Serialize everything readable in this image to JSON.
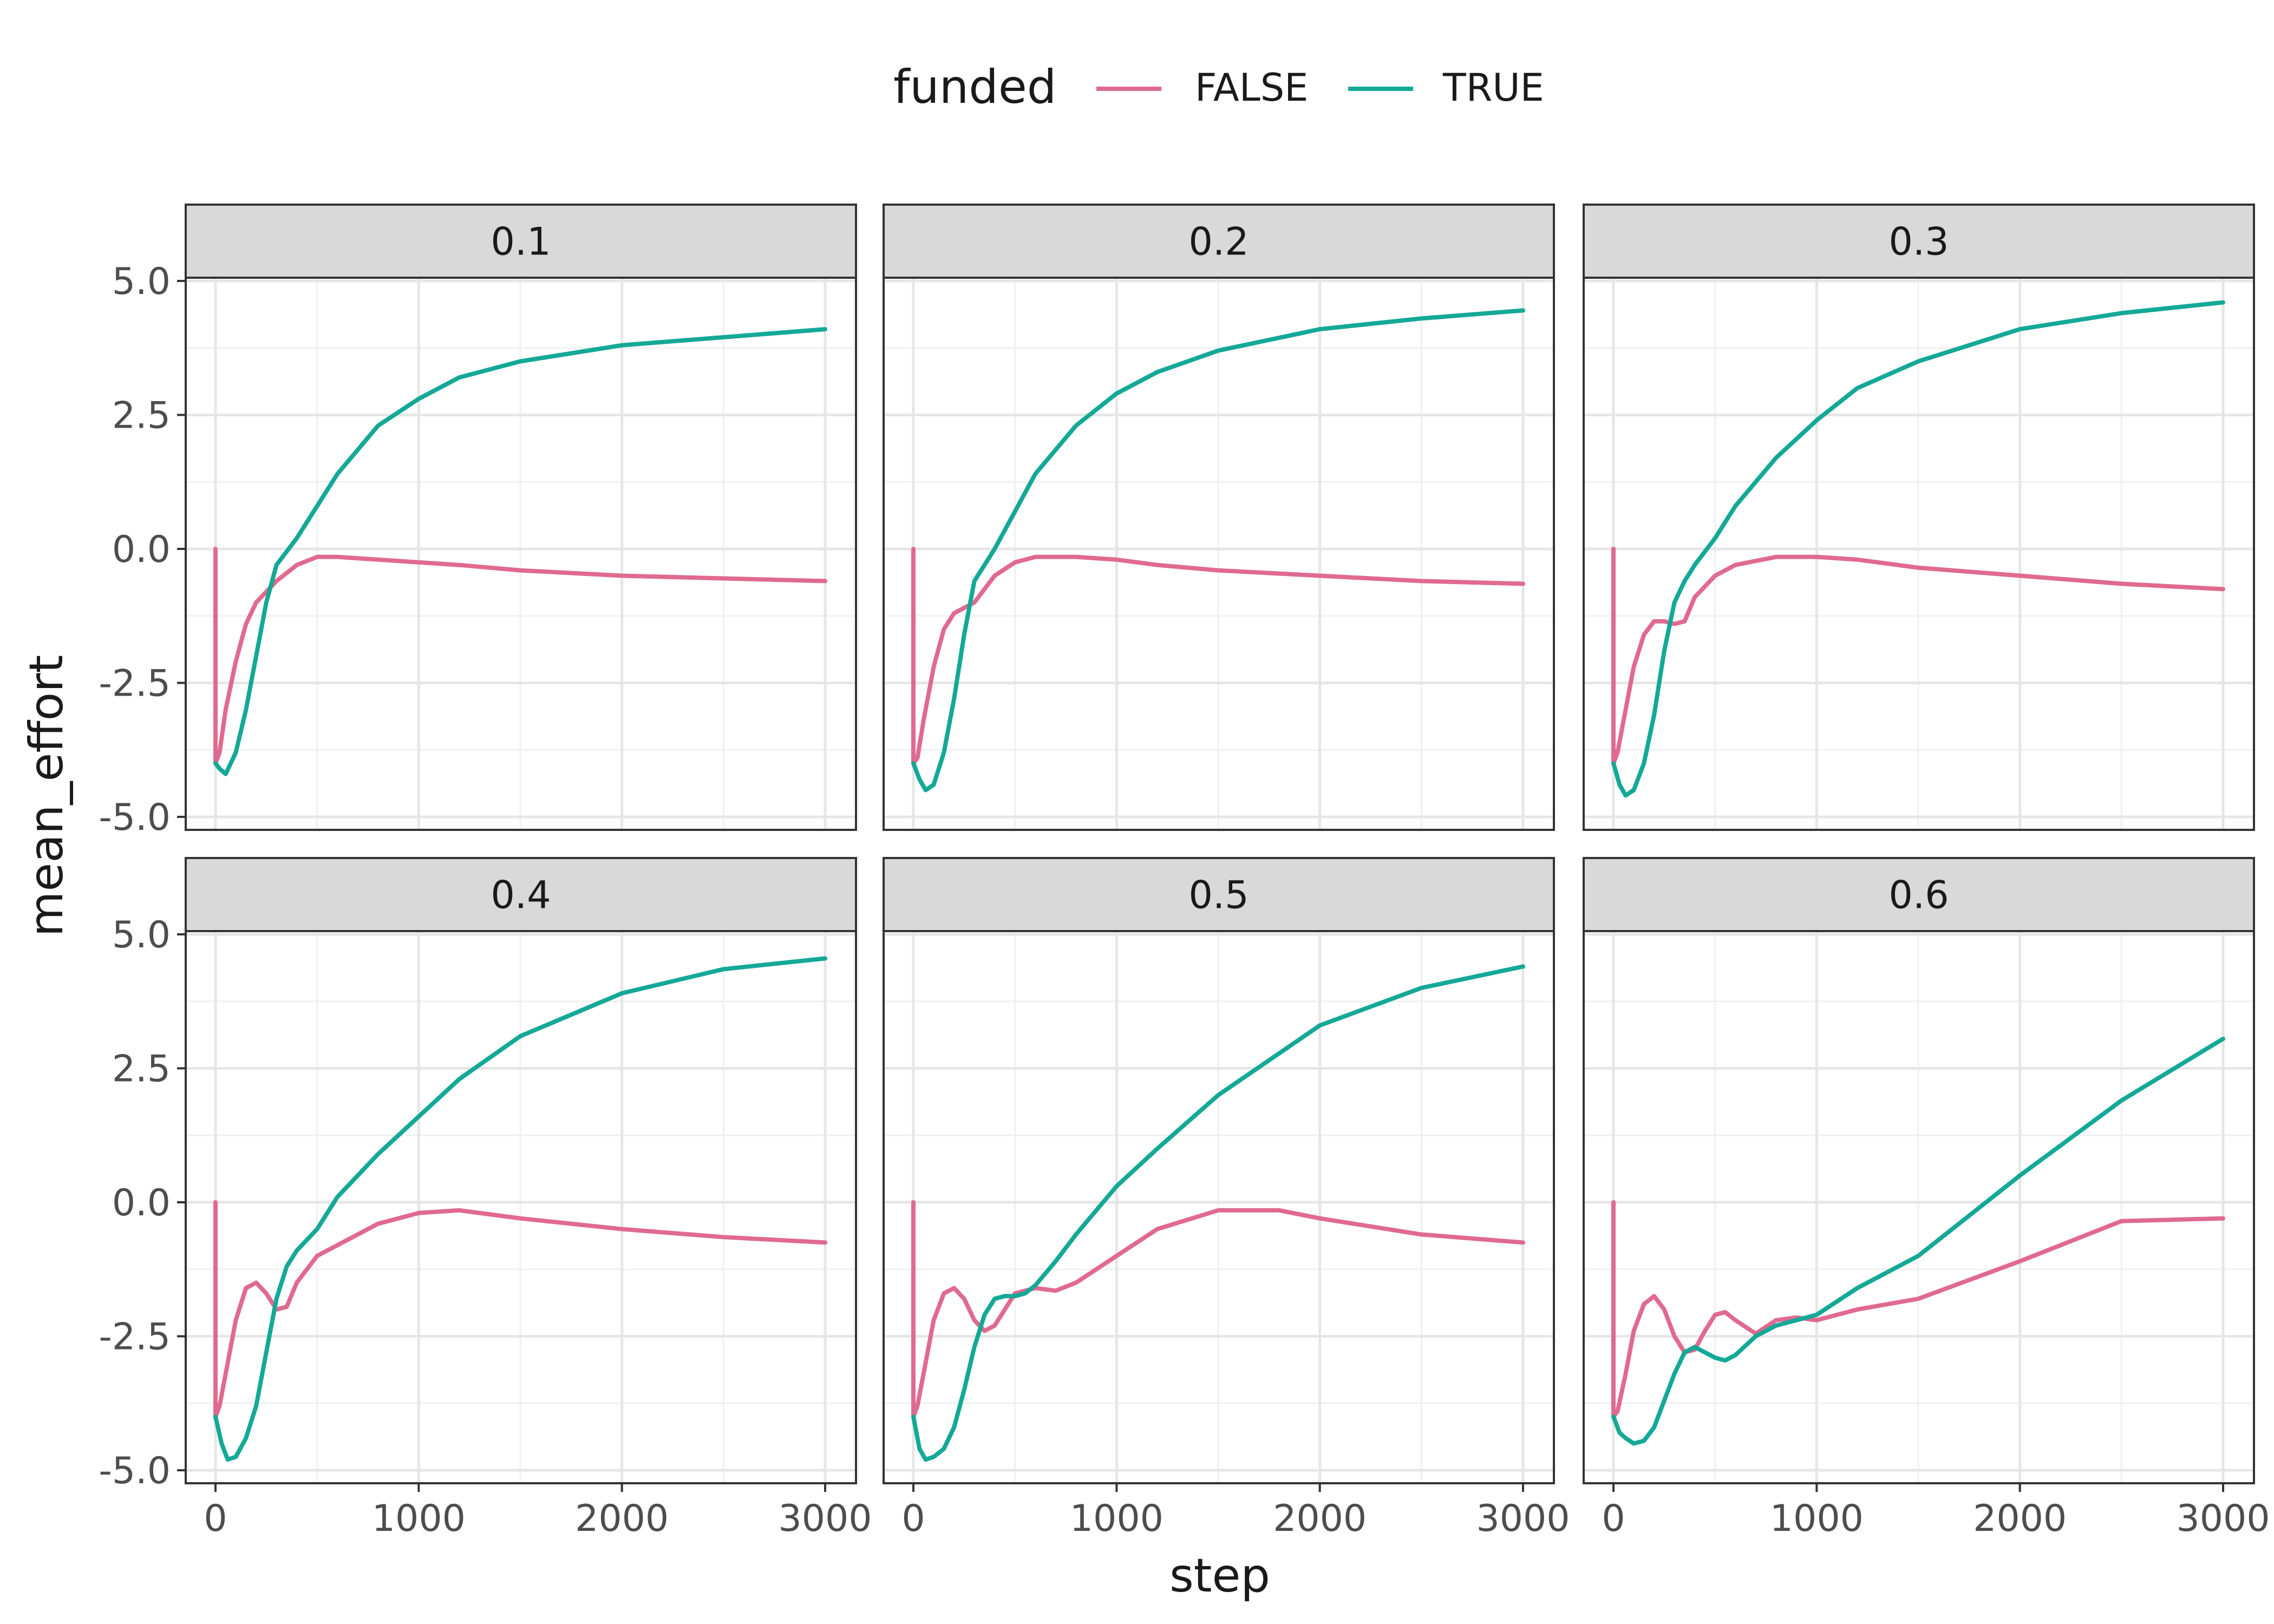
{
  "chart_data": {
    "type": "line",
    "title": "",
    "xlabel": "step",
    "ylabel": "mean_effort",
    "xlim": [
      0,
      3000
    ],
    "ylim": [
      -5.0,
      5.0
    ],
    "x_ticks": [
      0,
      1000,
      2000,
      3000
    ],
    "y_ticks": [
      -5.0,
      -2.5,
      0.0,
      2.5,
      5.0
    ],
    "y_tick_labels": [
      "-5.0",
      "-2.5",
      "0.0",
      "2.5",
      "5.0"
    ],
    "grid": true,
    "facet_layout": "2 rows x 3 columns, shared axes",
    "legend": {
      "position": "top",
      "title": "funded",
      "entries": [
        "FALSE",
        "TRUE"
      ]
    },
    "colors": {
      "FALSE": "#e06a8f",
      "TRUE": "#14a897"
    },
    "panels": [
      {
        "label": "0.1",
        "series": [
          {
            "name": "FALSE",
            "x": [
              0,
              0,
              20,
              50,
              100,
              150,
              200,
              300,
              400,
              500,
              600,
              800,
              1000,
              1200,
              1500,
              2000,
              2500,
              3000
            ],
            "y": [
              0.0,
              -4.0,
              -3.8,
              -3.0,
              -2.1,
              -1.4,
              -1.0,
              -0.6,
              -0.3,
              -0.15,
              -0.15,
              -0.2,
              -0.25,
              -0.3,
              -0.4,
              -0.5,
              -0.55,
              -0.6
            ]
          },
          {
            "name": "TRUE",
            "x": [
              0,
              20,
              50,
              100,
              150,
              200,
              250,
              300,
              400,
              500,
              600,
              800,
              1000,
              1200,
              1500,
              2000,
              2500,
              3000
            ],
            "y": [
              -4.0,
              -4.1,
              -4.2,
              -3.8,
              -3.0,
              -2.0,
              -1.0,
              -0.3,
              0.2,
              0.8,
              1.4,
              2.3,
              2.8,
              3.2,
              3.5,
              3.8,
              3.95,
              4.1
            ]
          }
        ]
      },
      {
        "label": "0.2",
        "series": [
          {
            "name": "FALSE",
            "x": [
              0,
              0,
              20,
              50,
              100,
              150,
              200,
              300,
              400,
              500,
              600,
              800,
              1000,
              1200,
              1500,
              2000,
              2500,
              3000
            ],
            "y": [
              0.0,
              -4.0,
              -3.9,
              -3.2,
              -2.2,
              -1.5,
              -1.2,
              -1.0,
              -0.5,
              -0.25,
              -0.15,
              -0.15,
              -0.2,
              -0.3,
              -0.4,
              -0.5,
              -0.6,
              -0.65
            ]
          },
          {
            "name": "TRUE",
            "x": [
              0,
              30,
              60,
              100,
              150,
              200,
              250,
              300,
              350,
              400,
              500,
              600,
              800,
              1000,
              1200,
              1500,
              2000,
              2500,
              3000
            ],
            "y": [
              -4.0,
              -4.3,
              -4.5,
              -4.4,
              -3.8,
              -2.8,
              -1.6,
              -0.6,
              -0.3,
              0.0,
              0.7,
              1.4,
              2.3,
              2.9,
              3.3,
              3.7,
              4.1,
              4.3,
              4.45
            ]
          }
        ]
      },
      {
        "label": "0.3",
        "series": [
          {
            "name": "FALSE",
            "x": [
              0,
              0,
              20,
              60,
              100,
              150,
              200,
              250,
              300,
              350,
              400,
              500,
              600,
              800,
              1000,
              1200,
              1500,
              2000,
              2500,
              3000
            ],
            "y": [
              0.0,
              -4.0,
              -3.8,
              -3.0,
              -2.2,
              -1.6,
              -1.35,
              -1.35,
              -1.4,
              -1.35,
              -0.9,
              -0.5,
              -0.3,
              -0.15,
              -0.15,
              -0.2,
              -0.35,
              -0.5,
              -0.65,
              -0.75
            ]
          },
          {
            "name": "TRUE",
            "x": [
              0,
              30,
              60,
              100,
              150,
              200,
              250,
              300,
              350,
              400,
              500,
              600,
              800,
              1000,
              1200,
              1500,
              2000,
              2500,
              3000
            ],
            "y": [
              -4.0,
              -4.4,
              -4.6,
              -4.5,
              -4.0,
              -3.1,
              -1.9,
              -1.0,
              -0.6,
              -0.3,
              0.2,
              0.8,
              1.7,
              2.4,
              3.0,
              3.5,
              4.1,
              4.4,
              4.6
            ]
          }
        ]
      },
      {
        "label": "0.4",
        "series": [
          {
            "name": "FALSE",
            "x": [
              0,
              0,
              20,
              60,
              100,
              150,
              200,
              250,
              300,
              350,
              400,
              500,
              600,
              800,
              1000,
              1200,
              1500,
              2000,
              2500,
              3000
            ],
            "y": [
              0.0,
              -4.0,
              -3.8,
              -3.0,
              -2.2,
              -1.6,
              -1.5,
              -1.7,
              -2.0,
              -1.95,
              -1.5,
              -1.0,
              -0.8,
              -0.4,
              -0.2,
              -0.15,
              -0.3,
              -0.5,
              -0.65,
              -0.75
            ]
          },
          {
            "name": "TRUE",
            "x": [
              0,
              30,
              60,
              100,
              150,
              200,
              250,
              300,
              350,
              400,
              500,
              600,
              800,
              1000,
              1200,
              1500,
              2000,
              2500,
              3000
            ],
            "y": [
              -4.0,
              -4.5,
              -4.8,
              -4.75,
              -4.4,
              -3.8,
              -2.8,
              -1.8,
              -1.2,
              -0.9,
              -0.5,
              0.1,
              0.9,
              1.6,
              2.3,
              3.1,
              3.9,
              4.35,
              4.55
            ]
          }
        ]
      },
      {
        "label": "0.5",
        "series": [
          {
            "name": "FALSE",
            "x": [
              0,
              0,
              20,
              60,
              100,
              150,
              200,
              250,
              300,
              350,
              400,
              450,
              500,
              600,
              700,
              800,
              1000,
              1200,
              1500,
              1800,
              2000,
              2500,
              3000
            ],
            "y": [
              0.0,
              -4.0,
              -3.8,
              -3.0,
              -2.2,
              -1.7,
              -1.6,
              -1.8,
              -2.2,
              -2.4,
              -2.3,
              -2.0,
              -1.7,
              -1.6,
              -1.65,
              -1.5,
              -1.0,
              -0.5,
              -0.15,
              -0.15,
              -0.3,
              -0.6,
              -0.75
            ]
          },
          {
            "name": "TRUE",
            "x": [
              0,
              30,
              60,
              100,
              150,
              200,
              250,
              300,
              350,
              400,
              450,
              500,
              550,
              600,
              700,
              800,
              1000,
              1200,
              1500,
              2000,
              2500,
              3000
            ],
            "y": [
              -4.0,
              -4.6,
              -4.8,
              -4.75,
              -4.6,
              -4.2,
              -3.5,
              -2.7,
              -2.1,
              -1.8,
              -1.75,
              -1.75,
              -1.7,
              -1.55,
              -1.1,
              -0.6,
              0.3,
              1.0,
              2.0,
              3.3,
              4.0,
              4.4
            ]
          }
        ]
      },
      {
        "label": "0.6",
        "series": [
          {
            "name": "FALSE",
            "x": [
              0,
              0,
              20,
              60,
              100,
              150,
              200,
              250,
              300,
              350,
              400,
              450,
              500,
              550,
              600,
              700,
              800,
              900,
              1000,
              1200,
              1500,
              2000,
              2500,
              3000
            ],
            "y": [
              0.0,
              -4.0,
              -3.9,
              -3.2,
              -2.4,
              -1.9,
              -1.75,
              -2.0,
              -2.5,
              -2.8,
              -2.75,
              -2.4,
              -2.1,
              -2.05,
              -2.2,
              -2.45,
              -2.2,
              -2.15,
              -2.2,
              -2.0,
              -1.8,
              -1.1,
              -0.35,
              -0.3
            ]
          },
          {
            "name": "TRUE",
            "x": [
              0,
              30,
              60,
              100,
              150,
              200,
              250,
              300,
              350,
              400,
              450,
              500,
              550,
              600,
              700,
              800,
              900,
              1000,
              1200,
              1500,
              2000,
              2500,
              3000
            ],
            "y": [
              -4.0,
              -4.3,
              -4.4,
              -4.5,
              -4.45,
              -4.2,
              -3.7,
              -3.2,
              -2.8,
              -2.7,
              -2.8,
              -2.9,
              -2.95,
              -2.85,
              -2.5,
              -2.3,
              -2.2,
              -2.1,
              -1.6,
              -1.0,
              0.5,
              1.9,
              3.05
            ]
          }
        ]
      }
    ]
  }
}
